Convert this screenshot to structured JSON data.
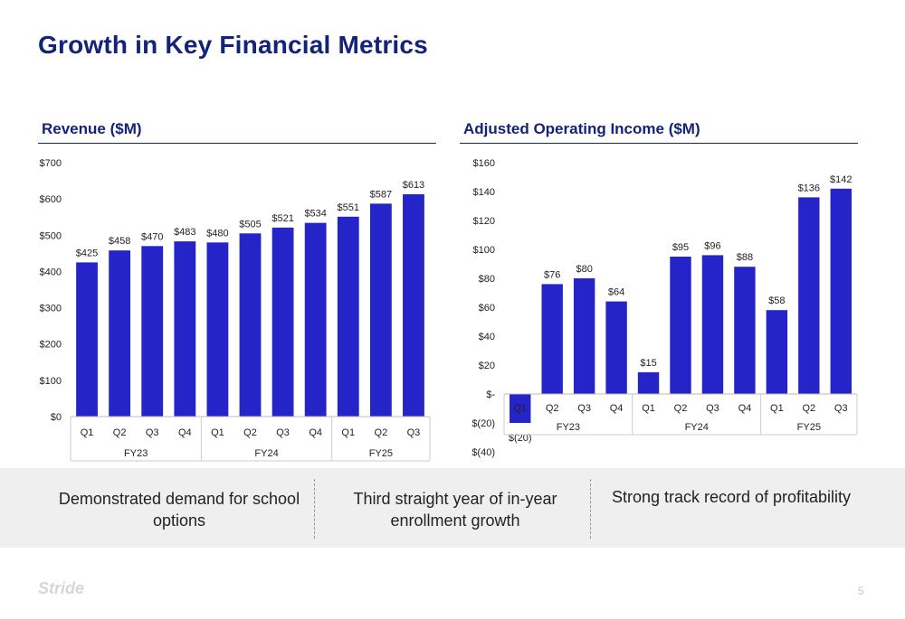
{
  "title": "Growth in Key Financial Metrics",
  "bar_color": "#2424c8",
  "chart_data": [
    {
      "type": "bar",
      "title": "Revenue ($M)",
      "categories": [
        "Q1",
        "Q2",
        "Q3",
        "Q4",
        "Q1",
        "Q2",
        "Q3",
        "Q4",
        "Q1",
        "Q2",
        "Q3"
      ],
      "groups": [
        {
          "label": "FY23",
          "count": 4
        },
        {
          "label": "FY24",
          "count": 4
        },
        {
          "label": "FY25",
          "count": 3
        }
      ],
      "values": [
        425,
        458,
        470,
        483,
        480,
        505,
        521,
        534,
        551,
        587,
        613
      ],
      "value_labels": [
        "$425",
        "$458",
        "$470",
        "$483",
        "$480",
        "$505",
        "$521",
        "$534",
        "$551",
        "$587",
        "$613"
      ],
      "ylim": [
        0,
        700
      ],
      "yticks": [
        0,
        100,
        200,
        300,
        400,
        500,
        600,
        700
      ],
      "ytick_labels": [
        "$0",
        "$100",
        "$200",
        "$300",
        "$400",
        "$500",
        "$600",
        "$700"
      ],
      "grid": false
    },
    {
      "type": "bar",
      "title": "Adjusted Operating Income ($M)",
      "categories": [
        "Q1",
        "Q2",
        "Q3",
        "Q4",
        "Q1",
        "Q2",
        "Q3",
        "Q4",
        "Q1",
        "Q2",
        "Q3"
      ],
      "groups": [
        {
          "label": "FY23",
          "count": 4
        },
        {
          "label": "FY24",
          "count": 4
        },
        {
          "label": "FY25",
          "count": 3
        }
      ],
      "values": [
        -20,
        76,
        80,
        64,
        15,
        95,
        96,
        88,
        58,
        136,
        142
      ],
      "value_labels": [
        "$(20)",
        "$76",
        "$80",
        "$64",
        "$15",
        "$95",
        "$96",
        "$88",
        "$58",
        "$136",
        "$142"
      ],
      "ylim": [
        -40,
        160
      ],
      "yticks": [
        -40,
        -20,
        0,
        20,
        40,
        60,
        80,
        100,
        120,
        140,
        160
      ],
      "ytick_labels": [
        "$(40)",
        "$(20)",
        "$-",
        "$20",
        "$40",
        "$60",
        "$80",
        "$100",
        "$120",
        "$140",
        "$160"
      ],
      "grid": false
    }
  ],
  "highlights": [
    "Demonstrated demand for school options",
    "Third straight year of in-year enrollment growth",
    "Strong track record of profitability"
  ],
  "logo": "Stride",
  "page_number": "5"
}
